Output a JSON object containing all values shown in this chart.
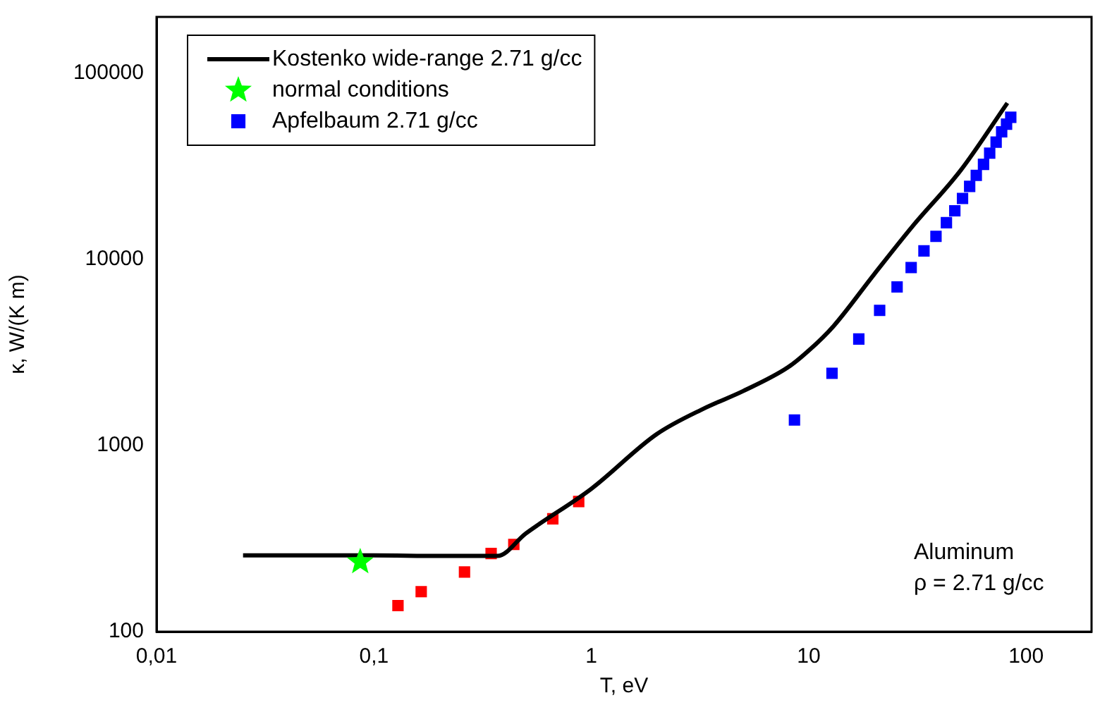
{
  "chart_data": {
    "type": "scatter",
    "xlabel": "T, eV",
    "ylabel": "κ, W/(K m)",
    "log": "xy",
    "xlim": [
      0.01,
      200
    ],
    "ylim": [
      100,
      200000
    ],
    "xticks": [
      {
        "value": 0.01,
        "label": "0,01"
      },
      {
        "value": 0.1,
        "label": "0,1"
      },
      1,
      10,
      100
    ],
    "yticks": [
      100,
      1000,
      10000,
      100000
    ],
    "grid": false,
    "legend": "top left",
    "annotations": [
      "Aluminum",
      "ρ = 2.71 g/cc"
    ],
    "series": [
      {
        "name": "Kostenko wide-range 2.71 g/cc",
        "type": "line",
        "marker": "none",
        "line_style": "solid",
        "color": "#000000",
        "x": [
          0.025,
          0.1,
          0.2,
          0.37,
          0.5,
          1,
          2,
          3.3,
          5,
          8,
          10,
          13,
          20,
          30,
          50,
          82
        ],
        "values": [
          257,
          257,
          255,
          255,
          337,
          585,
          1150,
          1580,
          1960,
          2620,
          3230,
          4370,
          8300,
          15000,
          30000,
          69000
        ]
      },
      {
        "marker": "square",
        "color": "#ff0000",
        "x": [
          0.129,
          0.165,
          0.261,
          0.346,
          0.44,
          0.665,
          0.875
        ],
        "values": [
          138,
          164,
          209,
          263,
          294,
          404,
          500
        ]
      },
      {
        "name": "normal conditions",
        "marker": "star",
        "color": "#00ff00",
        "x": [
          0.0865
        ],
        "values": [
          237
        ]
      },
      {
        "name": "Apfelbaum 2.71 g/cc",
        "marker": "square",
        "color": "#0000ff",
        "x": [
          8.6,
          12.8,
          17,
          21.2,
          25.5,
          29.6,
          33.9,
          38.5,
          43,
          47,
          51,
          55,
          59,
          63.7,
          68,
          72.8,
          77.2,
          81.3,
          85
        ],
        "values": [
          1370,
          2440,
          3730,
          5310,
          7100,
          9020,
          11090,
          13270,
          15700,
          18200,
          21200,
          24600,
          28200,
          32300,
          37100,
          42500,
          48300,
          53100,
          57800
        ]
      }
    ]
  }
}
